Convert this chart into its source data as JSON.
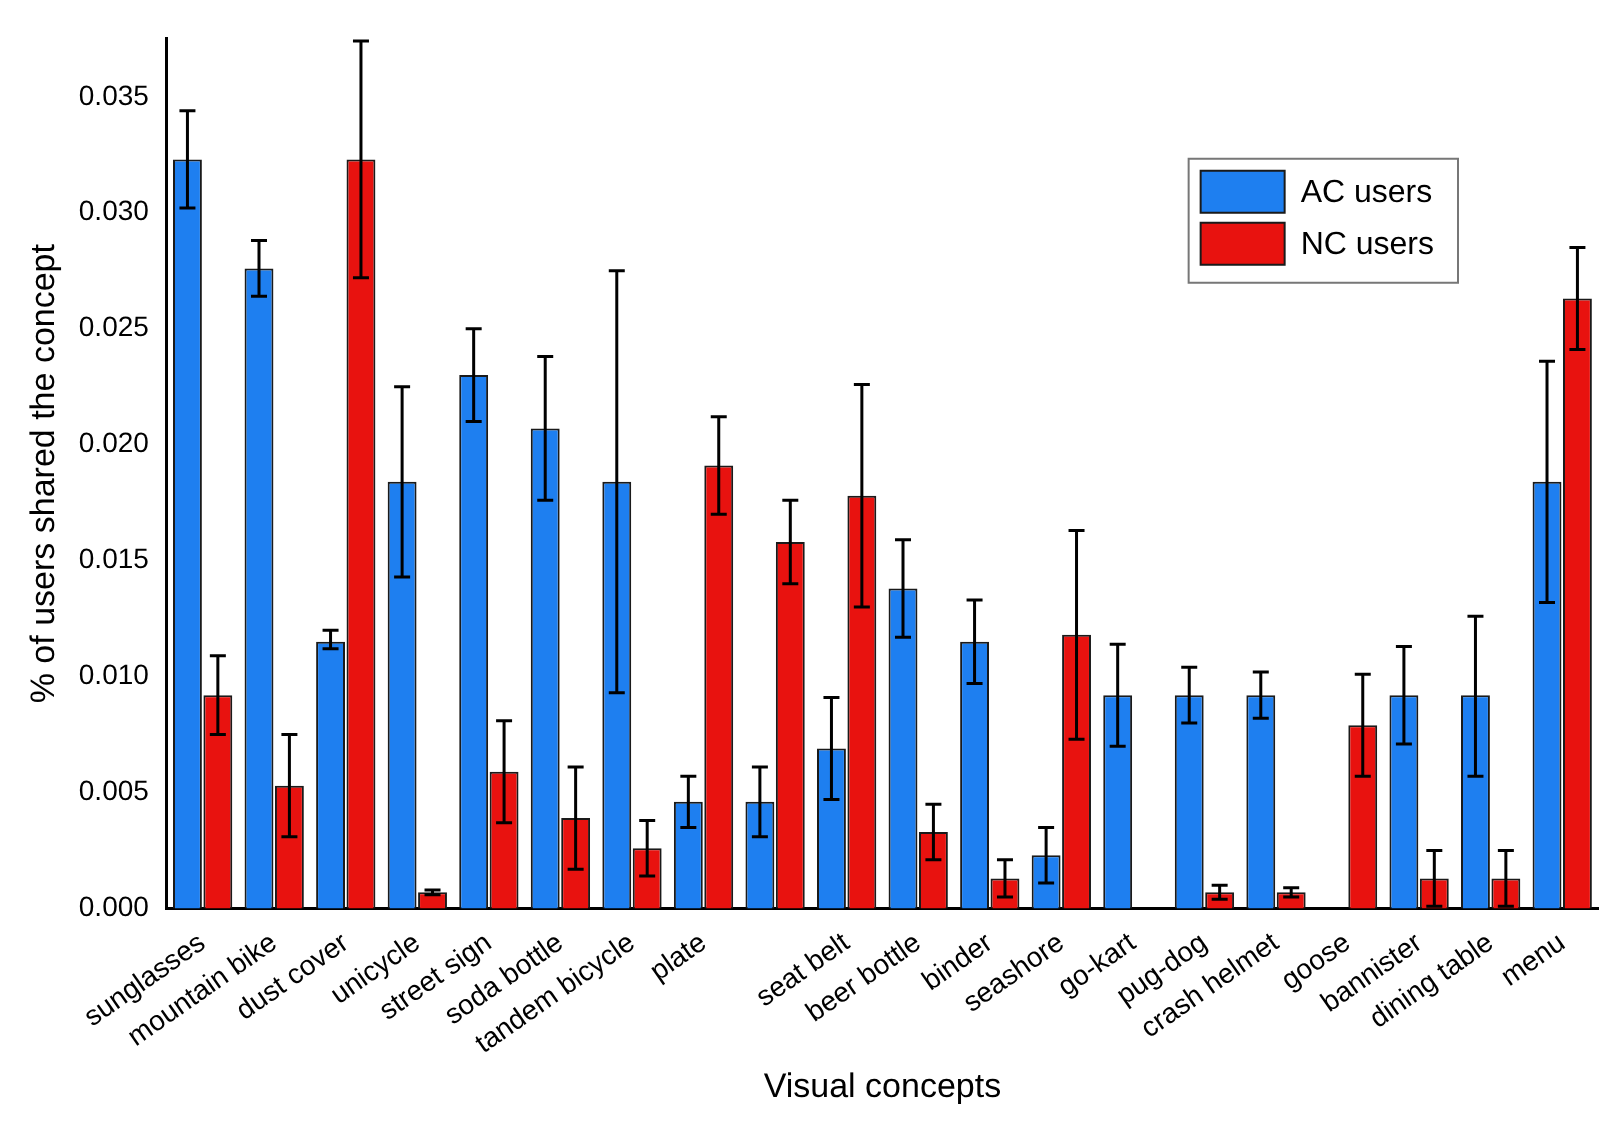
{
  "chart_data": {
    "type": "bar",
    "xlabel": "Visual concepts",
    "ylabel": "% of users shared the concept",
    "categories": [
      "sunglasses",
      "mountain bike",
      "dust cover",
      "unicycle",
      "street sign",
      "soda bottle",
      "tandem bicycle",
      "plate",
      null,
      "seat belt",
      "beer bottle",
      "binder",
      "seashore",
      "go-kart",
      "pug-dog",
      "crash helmet",
      "goose",
      "bannister",
      "dining table",
      "menu"
    ],
    "series": [
      {
        "name": "AC users",
        "color": "#1e7ff0",
        "values": [
          0.0323,
          0.0276,
          0.0115,
          0.0184,
          0.023,
          0.0207,
          0.0184,
          0.0046,
          0.0046,
          0.0069,
          0.0138,
          0.0115,
          0.0023,
          0.0092,
          0.0092,
          0.0092,
          0,
          0.0092,
          0.0092,
          0.0184
        ],
        "errors": [
          [
            0.0302,
            0.0344
          ],
          [
            0.0264,
            0.0288
          ],
          [
            0.0112,
            0.012
          ],
          [
            0.0143,
            0.0225
          ],
          [
            0.021,
            0.025
          ],
          [
            0.0176,
            0.0238
          ],
          [
            0.0093,
            0.0275
          ],
          [
            0.0035,
            0.0057
          ],
          [
            0.0031,
            0.0061
          ],
          [
            0.0047,
            0.0091
          ],
          [
            0.0117,
            0.0159
          ],
          [
            0.0097,
            0.0133
          ],
          [
            0.0011,
            0.0035
          ],
          [
            0.007,
            0.0114
          ],
          [
            0.008,
            0.0104
          ],
          [
            0.0082,
            0.0102
          ],
          null,
          [
            0.0071,
            0.0113
          ],
          [
            0.0057,
            0.0126
          ],
          [
            0.0132,
            0.0236
          ]
        ]
      },
      {
        "name": "NC users",
        "color": "#e8120f",
        "values": [
          0.0092,
          0.0053,
          0.0323,
          0.0007,
          0.0059,
          0.0039,
          0.0026,
          0.0191,
          0.0158,
          0.0178,
          0.0033,
          0.0013,
          0.0118,
          0,
          0.0007,
          0.0007,
          0.0079,
          0.0013,
          0.0013,
          0.0263
        ],
        "errors": [
          [
            0.0075,
            0.0109
          ],
          [
            0.0031,
            0.0075
          ],
          [
            0.0272,
            0.0374
          ],
          [
            0.0006,
            0.0008
          ],
          [
            0.0037,
            0.0081
          ],
          [
            0.0017,
            0.0061
          ],
          [
            0.0014,
            0.0038
          ],
          [
            0.017,
            0.0212
          ],
          [
            0.014,
            0.0176
          ],
          [
            0.013,
            0.0226
          ],
          [
            0.0021,
            0.0045
          ],
          [
            0.0005,
            0.0021
          ],
          [
            0.0073,
            0.0163
          ],
          null,
          [
            0.0004,
            0.001
          ],
          [
            0.0005,
            0.0009
          ],
          [
            0.0057,
            0.0101
          ],
          [
            0.0001,
            0.0025
          ],
          [
            0.0001,
            0.0025
          ],
          [
            0.0241,
            0.0285
          ]
        ]
      }
    ],
    "ylim": [
      0,
      0.0375
    ],
    "yticks": [
      {
        "value": 0,
        "label": "0.000"
      },
      {
        "value": 0.005,
        "label": "0.005"
      },
      {
        "value": 0.01,
        "label": "0.010"
      },
      {
        "value": 0.015,
        "label": "0.015"
      },
      {
        "value": 0.02,
        "label": "0.020"
      },
      {
        "value": 0.025,
        "label": "0.025"
      },
      {
        "value": 0.03,
        "label": "0.030"
      },
      {
        "value": 0.035,
        "label": "0.035"
      }
    ],
    "grid": false,
    "legend": "top right"
  }
}
